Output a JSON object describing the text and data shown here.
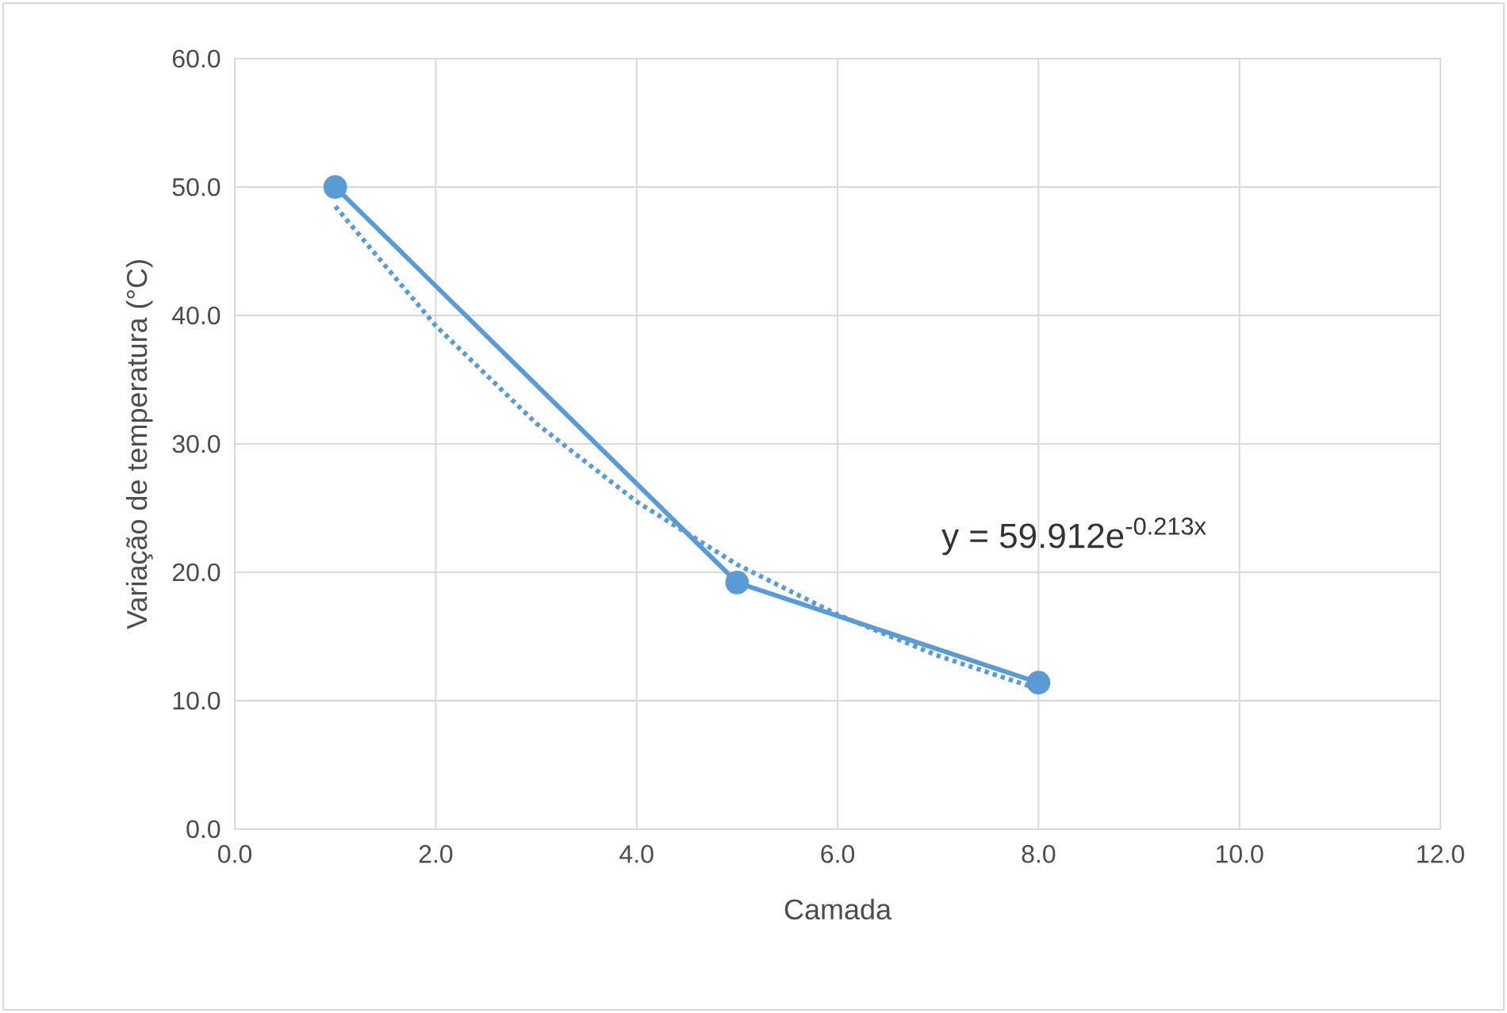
{
  "chart_data": {
    "type": "line",
    "xlabel": "Camada",
    "ylabel": "Variação de temperatura (°C)",
    "xlim": [
      0,
      12
    ],
    "ylim": [
      0,
      60
    ],
    "xticks": [
      {
        "value": 0,
        "label": "0.0"
      },
      {
        "value": 2,
        "label": "2.0"
      },
      {
        "value": 4,
        "label": "4.0"
      },
      {
        "value": 6,
        "label": "6.0"
      },
      {
        "value": 8,
        "label": "8.0"
      },
      {
        "value": 10,
        "label": "10.0"
      },
      {
        "value": 12,
        "label": "12.0"
      }
    ],
    "yticks": [
      {
        "value": 0,
        "label": "0.0"
      },
      {
        "value": 10,
        "label": "10.0"
      },
      {
        "value": 20,
        "label": "20.0"
      },
      {
        "value": 30,
        "label": "30.0"
      },
      {
        "value": 40,
        "label": "40.0"
      },
      {
        "value": 50,
        "label": "50.0"
      },
      {
        "value": 60,
        "label": "60.0"
      }
    ],
    "grid": true,
    "series": [
      {
        "color": "#5b9bd5",
        "x": [
          1,
          5,
          8
        ],
        "values": [
          50.0,
          19.2,
          11.4
        ],
        "marker": "circle",
        "line_style": "solid"
      },
      {
        "color": "#5b9bd5",
        "x": [
          1,
          2,
          3,
          4,
          5,
          6,
          7,
          8
        ],
        "values": [
          48.5,
          39.2,
          31.6,
          25.5,
          20.6,
          16.7,
          13.5,
          10.9
        ],
        "marker": "none",
        "line_style": "dotted"
      }
    ],
    "annotations": [
      "y = 59.912e$^{-0.213x}$"
    ]
  }
}
